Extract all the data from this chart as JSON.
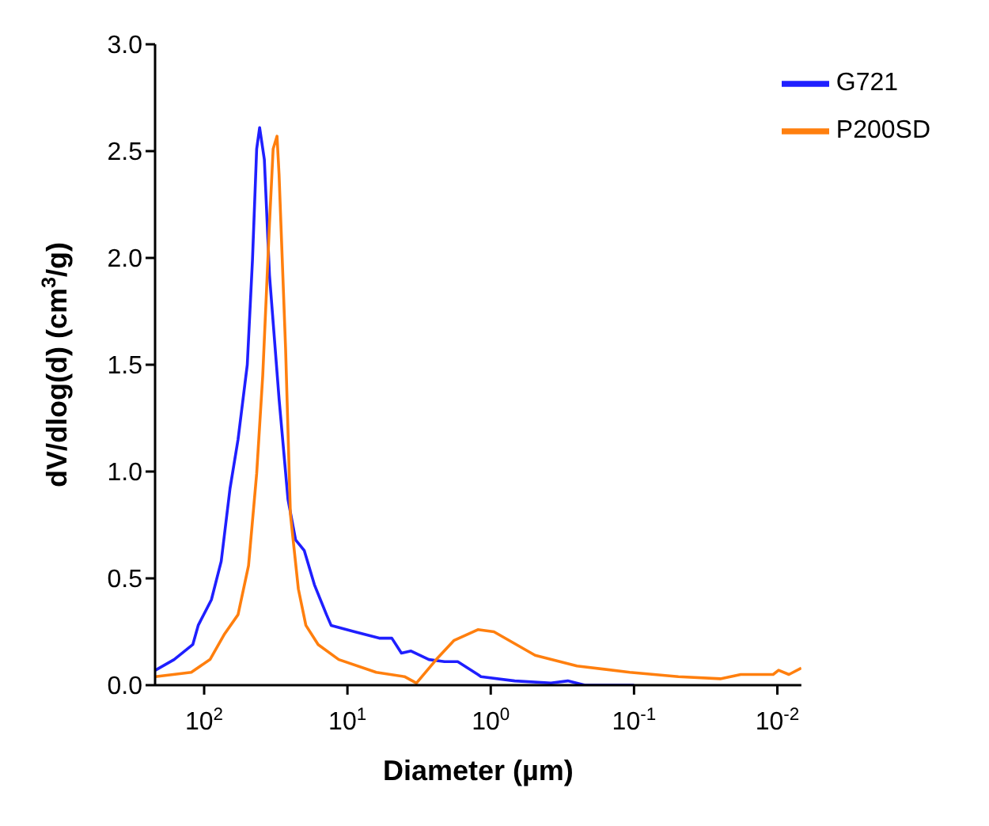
{
  "chart_data": {
    "type": "line",
    "xlabel": "Diameter (µm)",
    "ylabel": "dV/dlog(d) (cm$^{3}$/g)",
    "log": "x",
    "xlim": [
      220,
      0.0068
    ],
    "xticks": [
      {
        "value": 100,
        "label": "10$^{2}$"
      },
      {
        "value": 10,
        "label": "10$^{1}$"
      },
      {
        "value": 1,
        "label": "10$^{0}$"
      },
      {
        "value": 0.1,
        "label": "10$^{-1}$"
      },
      {
        "value": 0.01,
        "label": "10$^{-2}$"
      }
    ],
    "ylim": [
      0,
      3
    ],
    "yticks": [
      {
        "value": 0,
        "label": "0.0"
      },
      0.5,
      {
        "value": 1,
        "label": "1.0"
      },
      1.5,
      {
        "value": 2,
        "label": "2.0"
      },
      2.5,
      {
        "value": 3,
        "label": "3.0"
      }
    ],
    "legend": "top right",
    "marker": "none",
    "line_style": "solid",
    "series": [
      {
        "name": "G721",
        "color": "#1f1fff",
        "x": [
          219,
          162,
          120,
          110,
          89,
          76,
          66,
          58,
          50,
          46,
          43,
          41,
          38,
          35,
          30,
          26,
          23,
          20,
          17,
          14,
          13,
          8.9,
          6.0,
          4.9,
          4.2,
          3.6,
          2.7,
          2.1,
          1.7,
          1.23,
          1.17,
          0.68,
          0.38,
          0.29,
          0.22,
          0.1
        ],
        "values": [
          0.07,
          0.12,
          0.19,
          0.28,
          0.4,
          0.58,
          0.92,
          1.15,
          1.5,
          1.99,
          2.51,
          2.61,
          2.46,
          1.92,
          1.34,
          0.87,
          0.68,
          0.63,
          0.47,
          0.33,
          0.28,
          0.25,
          0.22,
          0.22,
          0.15,
          0.16,
          0.12,
          0.11,
          0.11,
          0.05,
          0.04,
          0.02,
          0.01,
          0.02,
          0,
          0
        ]
      },
      {
        "name": "P200SD",
        "color": "#ff7f0e",
        "x": [
          219,
          123,
          91,
          72,
          58,
          49,
          43,
          39,
          35,
          33,
          31,
          30,
          27,
          25,
          22,
          19.5,
          16,
          11.5,
          6.3,
          4.0,
          3.3,
          2.4,
          1.8,
          1.23,
          0.95,
          0.49,
          0.25,
          0.107,
          0.049,
          0.025,
          0.018,
          0.0107,
          0.0098,
          0.0083,
          0.0068
        ],
        "values": [
          0.04,
          0.06,
          0.12,
          0.24,
          0.33,
          0.56,
          0.99,
          1.45,
          2.16,
          2.51,
          2.57,
          2.39,
          1.57,
          0.8,
          0.45,
          0.28,
          0.19,
          0.12,
          0.06,
          0.04,
          0.01,
          0.12,
          0.21,
          0.26,
          0.25,
          0.14,
          0.09,
          0.06,
          0.04,
          0.03,
          0.05,
          0.05,
          0.07,
          0.05,
          0.08
        ]
      }
    ]
  }
}
